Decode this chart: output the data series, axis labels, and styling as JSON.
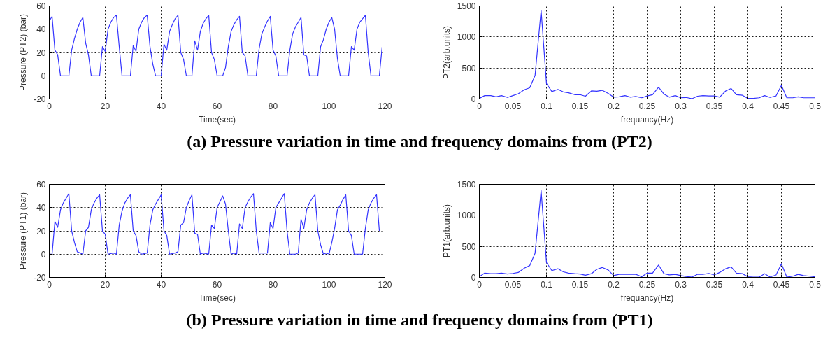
{
  "chart_data": [
    {
      "type": "line",
      "xlabel": "Time(sec)",
      "ylabel": "Pressure (PT2) (bar)",
      "xlim": [
        0,
        120
      ],
      "ylim": [
        -20,
        60
      ],
      "xticks": [
        0,
        20,
        40,
        60,
        80,
        100,
        120
      ],
      "yticks": [
        -20,
        0,
        20,
        40,
        60
      ],
      "grid": true,
      "line_style": "solid",
      "marker": "none",
      "annotations": [
        "(a) Pressure variation in time and frequency domains from (PT2)"
      ],
      "series": [
        {
          "color": "#3333ff",
          "x": [
            0,
            1,
            2,
            3,
            4,
            7,
            8,
            9,
            10,
            11,
            12,
            13,
            14,
            15,
            18,
            19,
            20,
            21,
            22,
            23,
            24,
            25,
            26,
            29,
            30,
            31,
            32,
            33,
            34,
            35,
            36,
            37,
            38,
            40,
            41,
            42,
            43,
            44,
            45,
            46,
            47,
            48,
            49,
            51,
            52,
            53,
            54,
            55,
            56,
            57,
            58,
            59,
            60,
            62,
            63,
            64,
            65,
            66,
            67,
            68,
            69,
            70,
            71,
            74,
            75,
            76,
            77,
            78,
            79,
            80,
            81,
            82,
            85,
            86,
            87,
            88,
            89,
            90,
            91,
            92,
            93,
            96,
            97,
            98,
            99,
            100,
            101,
            102,
            103,
            104,
            107,
            108,
            109,
            110,
            111,
            112,
            113,
            114,
            115,
            118,
            119
          ],
          "values": [
            47,
            51,
            22,
            18,
            0,
            0,
            22,
            32,
            40,
            46,
            50,
            28,
            18,
            0,
            0,
            25,
            21,
            40,
            46,
            50,
            52,
            25,
            0,
            0,
            26,
            21,
            40,
            46,
            50,
            52,
            25,
            10,
            0,
            0,
            27,
            22,
            38,
            44,
            49,
            52,
            20,
            14,
            0,
            0,
            30,
            22,
            38,
            45,
            49,
            52,
            20,
            14,
            0,
            0,
            7,
            25,
            38,
            44,
            48,
            51,
            20,
            17,
            0,
            0,
            23,
            36,
            42,
            47,
            51,
            22,
            17,
            0,
            0,
            22,
            36,
            42,
            46,
            50,
            18,
            17,
            0,
            0,
            25,
            31,
            40,
            46,
            50,
            40,
            15,
            0,
            0,
            25,
            22,
            40,
            46,
            49,
            52,
            20,
            0,
            0,
            25
          ]
        }
      ]
    },
    {
      "type": "line",
      "xlabel": "frequancy(Hz)",
      "ylabel": "PT2(arb.units)",
      "xlim": [
        0,
        0.5
      ],
      "ylim": [
        0,
        1500
      ],
      "xticks": [
        0,
        0.05,
        0.1,
        0.15,
        0.2,
        0.25,
        0.3,
        0.35,
        0.4,
        0.45,
        0.5
      ],
      "yticks": [
        0,
        500,
        1000,
        1500
      ],
      "grid": true,
      "line_style": "solid",
      "marker": "none",
      "series": [
        {
          "color": "#3333ff",
          "x": [
            0,
            0.008,
            0.017,
            0.025,
            0.033,
            0.042,
            0.05,
            0.058,
            0.067,
            0.075,
            0.083,
            0.092,
            0.1,
            0.108,
            0.117,
            0.125,
            0.133,
            0.142,
            0.15,
            0.158,
            0.167,
            0.175,
            0.183,
            0.192,
            0.2,
            0.208,
            0.217,
            0.225,
            0.233,
            0.242,
            0.25,
            0.258,
            0.267,
            0.275,
            0.283,
            0.292,
            0.3,
            0.308,
            0.317,
            0.325,
            0.333,
            0.342,
            0.35,
            0.358,
            0.367,
            0.375,
            0.383,
            0.392,
            0.4,
            0.408,
            0.417,
            0.425,
            0.433,
            0.442,
            0.45,
            0.458,
            0.467,
            0.475,
            0.483,
            0.492,
            0.5
          ],
          "values": [
            10,
            55,
            55,
            35,
            55,
            25,
            55,
            85,
            150,
            180,
            380,
            1430,
            250,
            120,
            155,
            115,
            100,
            70,
            70,
            45,
            130,
            125,
            140,
            90,
            30,
            35,
            55,
            30,
            40,
            20,
            50,
            70,
            190,
            80,
            30,
            55,
            20,
            25,
            5,
            45,
            55,
            50,
            50,
            30,
            130,
            170,
            70,
            60,
            10,
            10,
            20,
            55,
            25,
            50,
            220,
            20,
            20,
            35,
            20,
            20,
            20
          ]
        }
      ]
    },
    {
      "type": "line",
      "xlabel": "Time(sec)",
      "ylabel": "Pressure (PT1) (bar)",
      "xlim": [
        0,
        120
      ],
      "ylim": [
        -20,
        60
      ],
      "xticks": [
        0,
        20,
        40,
        60,
        80,
        100,
        120
      ],
      "yticks": [
        -20,
        0,
        20,
        40,
        60
      ],
      "grid": true,
      "line_style": "solid",
      "marker": "none",
      "annotations": [
        "(b) Pressure variation in time and frequency domains from (PT1)"
      ],
      "series": [
        {
          "color": "#3333ff",
          "x": [
            0,
            1,
            2,
            3,
            4,
            5,
            6,
            7,
            8,
            9,
            10,
            11,
            12,
            13,
            14,
            15,
            16,
            17,
            18,
            19,
            20,
            21,
            23,
            24,
            25,
            26,
            27,
            28,
            29,
            30,
            31,
            32,
            33,
            35,
            36,
            37,
            38,
            39,
            40,
            41,
            42,
            43,
            45,
            46,
            47,
            48,
            49,
            50,
            51,
            52,
            53,
            54,
            55,
            57,
            58,
            59,
            60,
            61,
            62,
            63,
            64,
            65,
            66,
            67,
            68,
            69,
            70,
            71,
            72,
            73,
            74,
            75,
            78,
            79,
            80,
            81,
            82,
            83,
            84,
            85,
            86,
            88,
            89,
            90,
            91,
            92,
            93,
            94,
            95,
            96,
            97,
            98,
            99,
            100,
            101,
            102,
            103,
            104,
            105,
            106,
            107,
            108,
            109,
            112,
            113,
            114,
            115,
            116,
            117,
            118
          ],
          "values": [
            0,
            0,
            28,
            23,
            38,
            44,
            48,
            52,
            20,
            10,
            2,
            1,
            0,
            20,
            23,
            38,
            44,
            48,
            51,
            20,
            17,
            0,
            1,
            0,
            25,
            37,
            44,
            48,
            51,
            20,
            16,
            2,
            0,
            1,
            25,
            38,
            43,
            47,
            51,
            20,
            16,
            0,
            1,
            2,
            25,
            27,
            40,
            46,
            51,
            18,
            17,
            0,
            1,
            0,
            25,
            22,
            40,
            45,
            50,
            43,
            20,
            0,
            1,
            0,
            26,
            22,
            40,
            45,
            49,
            52,
            20,
            1,
            1,
            27,
            22,
            40,
            44,
            48,
            52,
            20,
            0,
            0,
            1,
            30,
            22,
            38,
            44,
            48,
            51,
            20,
            8,
            0,
            1,
            0,
            10,
            22,
            38,
            42,
            47,
            51,
            20,
            16,
            0,
            0,
            22,
            38,
            44,
            48,
            51,
            20
          ]
        }
      ]
    },
    {
      "type": "line",
      "xlabel": "frequancy(Hz)",
      "ylabel": "PT1(arb.units)",
      "xlim": [
        0,
        0.5
      ],
      "ylim": [
        0,
        1500
      ],
      "xticks": [
        0,
        0.05,
        0.1,
        0.15,
        0.2,
        0.25,
        0.3,
        0.35,
        0.4,
        0.45,
        0.5
      ],
      "yticks": [
        0,
        500,
        1000,
        1500
      ],
      "grid": true,
      "line_style": "solid",
      "marker": "none",
      "series": [
        {
          "color": "#3333ff",
          "x": [
            0,
            0.008,
            0.017,
            0.025,
            0.033,
            0.042,
            0.05,
            0.058,
            0.067,
            0.075,
            0.083,
            0.092,
            0.1,
            0.108,
            0.117,
            0.125,
            0.133,
            0.142,
            0.15,
            0.158,
            0.167,
            0.175,
            0.183,
            0.192,
            0.2,
            0.208,
            0.217,
            0.225,
            0.233,
            0.242,
            0.25,
            0.258,
            0.267,
            0.275,
            0.283,
            0.292,
            0.3,
            0.308,
            0.317,
            0.325,
            0.333,
            0.342,
            0.35,
            0.358,
            0.367,
            0.375,
            0.383,
            0.392,
            0.4,
            0.408,
            0.417,
            0.425,
            0.433,
            0.442,
            0.45,
            0.458,
            0.467,
            0.475,
            0.483,
            0.492,
            0.5
          ],
          "values": [
            10,
            70,
            60,
            60,
            70,
            55,
            65,
            80,
            150,
            190,
            390,
            1400,
            240,
            110,
            140,
            90,
            70,
            60,
            55,
            35,
            60,
            130,
            160,
            120,
            30,
            50,
            50,
            50,
            50,
            10,
            70,
            70,
            200,
            60,
            40,
            50,
            30,
            15,
            5,
            50,
            50,
            65,
            40,
            80,
            140,
            170,
            70,
            60,
            10,
            5,
            5,
            60,
            5,
            40,
            220,
            5,
            20,
            50,
            30,
            20,
            10
          ]
        }
      ]
    }
  ]
}
